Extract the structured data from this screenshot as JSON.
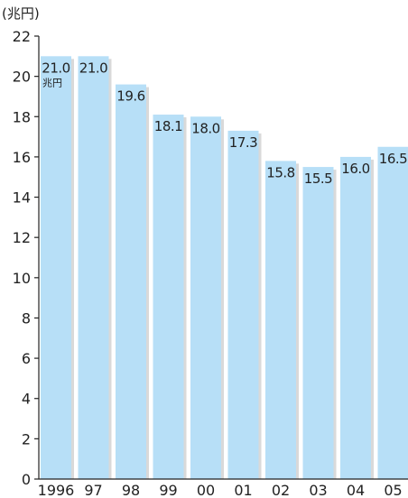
{
  "chart_data": {
    "type": "bar",
    "y_unit_label": "(兆円)",
    "first_bar_unit": "兆円",
    "categories": [
      "1996",
      "97",
      "98",
      "99",
      "00",
      "01",
      "02",
      "03",
      "04",
      "05"
    ],
    "values": [
      21.0,
      21.0,
      19.6,
      18.1,
      18.0,
      17.3,
      15.8,
      15.5,
      16.0,
      16.5
    ],
    "value_labels": [
      "21.0",
      "21.0",
      "19.6",
      "18.1",
      "18.0",
      "17.3",
      "15.8",
      "15.5",
      "16.0",
      "16.5"
    ],
    "ylim": [
      0,
      22
    ],
    "yticks": [
      "0",
      "2",
      "4",
      "6",
      "8",
      "10",
      "12",
      "14",
      "16",
      "18",
      "20",
      "22"
    ],
    "bar_color": "#b7dff7",
    "bar_shadow_color": "#d9d9d9",
    "grid": false,
    "legend": "none"
  }
}
